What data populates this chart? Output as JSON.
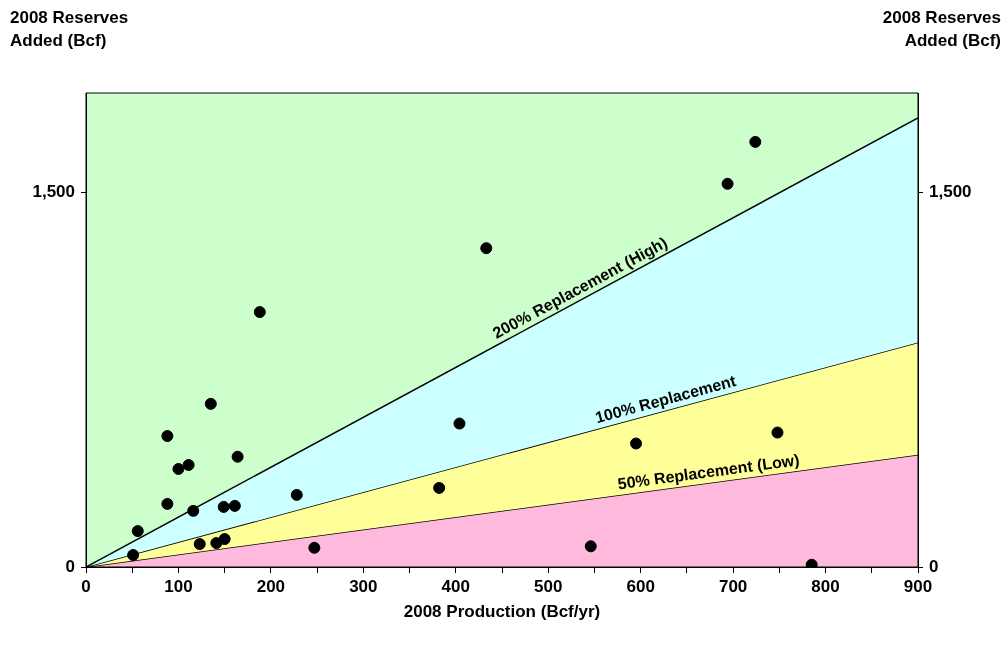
{
  "chart_data": {
    "type": "scatter",
    "xlabel": "2008 Production (Bcf/yr)",
    "ylabel": "2008 Reserves Added (Bcf)",
    "y2label": "2008 Reserves Added (Bcf)",
    "xlim": [
      0,
      900
    ],
    "xticks": [
      0,
      {
        "value": 50,
        "label": null
      },
      100,
      {
        "value": 150,
        "label": null
      },
      200,
      {
        "value": 250,
        "label": null
      },
      300,
      {
        "value": 350,
        "label": null
      },
      400,
      {
        "value": 450,
        "label": null
      },
      500,
      {
        "value": 550,
        "label": null
      },
      600,
      {
        "value": 650,
        "label": null
      },
      700,
      {
        "value": 750,
        "label": null
      },
      800,
      {
        "value": 850,
        "label": null
      },
      900
    ],
    "ylim": [
      0,
      1900
    ],
    "yticks": [
      0,
      {
        "value": 1500,
        "label": "1,500"
      }
    ],
    "y2lim": [
      0,
      1900
    ],
    "y2ticks": [
      0,
      {
        "value": 1500,
        "label": "1,500"
      }
    ],
    "grid": false,
    "legend": false,
    "series": [
      {
        "type": "area",
        "marker": "none",
        "name": "200% Replacement (High)",
        "color": "#ccffff",
        "x": [
          0,
          900
        ],
        "values": [
          0,
          1800
        ]
      },
      {
        "type": "area",
        "marker": "none",
        "name": "100% Replacement",
        "color": "#ffff99",
        "x": [
          0,
          900
        ],
        "values": [
          0,
          900
        ]
      },
      {
        "type": "area",
        "marker": "none",
        "name": "50% Replacement (Low)",
        "color": "#ffb9dc",
        "x": [
          0,
          900
        ],
        "values": [
          0,
          450
        ]
      },
      {
        "marker": "circle",
        "color": "#000000",
        "x": [
          51,
          56,
          88,
          88,
          100,
          111,
          116,
          123,
          135,
          141,
          149,
          150,
          161,
          164,
          188,
          228,
          247,
          382,
          404,
          433,
          546,
          595,
          694,
          724,
          748,
          785
        ],
        "values": [
          48,
          144,
          525,
          253,
          393,
          409,
          225,
          92,
          654,
          96,
          241,
          112,
          245,
          442,
          1022,
          289,
          77,
          317,
          575,
          1278,
          83,
          495,
          1536,
          1704,
          539,
          9
        ]
      }
    ]
  }
}
